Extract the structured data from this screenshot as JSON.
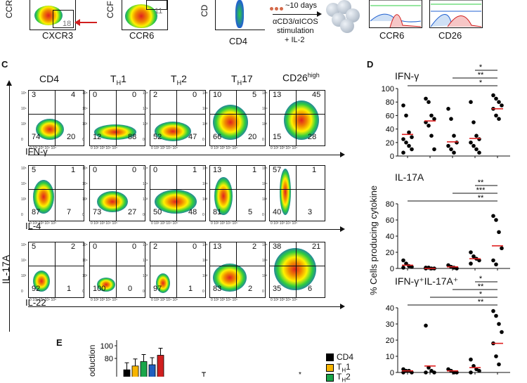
{
  "top": {
    "axis_cxcr3": "CXCR3",
    "axis_ccr6": "CCR6",
    "axis_cd4": "CD4",
    "gate_18": "18",
    "gate_11": "11",
    "culture": "~10 days",
    "stim1": "αCD3/αICOS",
    "stim2": "stimulation",
    "stim3": "+ IL-2",
    "hist_ccr6": "CCR6",
    "hist_cd26": "CD26"
  },
  "panelC": {
    "letter": "C",
    "y_axis_label": "IL-17A",
    "columns": [
      "CD4",
      "TH1",
      "TH2",
      "TH17",
      "CD26high"
    ],
    "row_labels": [
      "IFN-γ",
      "IL-4",
      "IL-22"
    ],
    "tick_x": "0 10² 10³ 10⁴ 10⁵",
    "tick_y": [
      "10⁵",
      "10⁴",
      "10³",
      "0"
    ],
    "rows": [
      [
        [
          "3",
          "4",
          "74",
          "20"
        ],
        [
          "0",
          "0",
          "12",
          "88"
        ],
        [
          "2",
          "0",
          "52",
          "47"
        ],
        [
          "10",
          "5",
          "66",
          "20"
        ],
        [
          "13",
          "45",
          "15",
          "28"
        ]
      ],
      [
        [
          "5",
          "1",
          "87",
          "7"
        ],
        [
          "0",
          "0",
          "73",
          "27"
        ],
        [
          "0",
          "1",
          "50",
          "48"
        ],
        [
          "13",
          "1",
          "81",
          "5"
        ],
        [
          "57",
          "1",
          "40",
          "3"
        ]
      ],
      [
        [
          "5",
          "2",
          "92",
          "1"
        ],
        [
          "0",
          "0",
          "100",
          "0"
        ],
        [
          "2",
          "0",
          "97",
          "1"
        ],
        [
          "13",
          "2",
          "83",
          "2"
        ],
        [
          "38",
          "21",
          "35",
          "6"
        ]
      ]
    ]
  },
  "panelD": {
    "letter": "D",
    "y_label": "% Cells producing cytokine",
    "sub1": "IFN-γ",
    "sub2": "IL-17A",
    "sub3": "IFN-γ⁺IL-17A⁺",
    "yt1": [
      "100",
      "80",
      "60",
      "40",
      "20",
      "0"
    ],
    "yt2": [
      "80",
      "60",
      "40",
      "20",
      "0"
    ],
    "yt3": [
      "40",
      "30",
      "20",
      "10",
      "0"
    ],
    "sig1": [
      "*",
      "**",
      "*"
    ],
    "sig2": [
      "**",
      "***",
      "**"
    ],
    "sig3": [
      "*",
      "**",
      "*",
      "**"
    ]
  },
  "panelE": {
    "letter": "E",
    "y_label": "oduction",
    "yticks": [
      "100",
      "80"
    ],
    "legend": [
      "CD4",
      "TH1",
      "TH2"
    ],
    "colors": {
      "CD4": "#000000",
      "TH1": "#f7b500",
      "TH2": "#1aa64a",
      "TH17": "#1f5fbf",
      "CD26high": "#d11f1f"
    }
  },
  "chart_data": [
    {
      "type": "scatter",
      "title": "IFN-γ",
      "ylabel": "% Cells producing cytokine",
      "categories": [
        "CD4",
        "TH1",
        "TH2",
        "TH17",
        "CD26high"
      ],
      "ylim": [
        0,
        100
      ],
      "series": [
        {
          "values": [
            [
              75,
              60,
              35,
              28,
              25,
              20,
              15,
              10,
              5
            ],
            [
              85,
              80,
              60,
              55,
              50,
              45,
              30,
              10
            ],
            [
              70,
              55,
              30,
              20,
              15,
              10,
              5
            ],
            [
              80,
              50,
              30,
              25,
              20,
              15,
              10,
              5
            ],
            [
              90,
              85,
              80,
              75,
              70,
              60,
              55
            ]
          ]
        }
      ],
      "medians": [
        32,
        52,
        21,
        26,
        70
      ]
    },
    {
      "type": "scatter",
      "title": "IL-17A",
      "categories": [
        "CD4",
        "TH1",
        "TH2",
        "TH17",
        "CD26high"
      ],
      "ylim": [
        0,
        80
      ],
      "series": [
        {
          "values": [
            [
              10,
              6,
              3,
              2,
              1
            ],
            [
              1,
              1,
              0,
              0,
              0
            ],
            [
              4,
              2,
              1,
              0
            ],
            [
              20,
              15,
              12,
              10,
              6
            ],
            [
              65,
              60,
              45,
              25,
              10,
              5
            ]
          ]
        }
      ],
      "medians": [
        4,
        0,
        2,
        12,
        28
      ]
    },
    {
      "type": "scatter",
      "title": "IFN-γ⁺IL-17A⁺",
      "categories": [
        "CD4",
        "TH1",
        "TH2",
        "TH17",
        "CD26high"
      ],
      "ylim": [
        0,
        40
      ],
      "series": [
        {
          "values": [
            [
              2,
              1,
              1,
              0,
              0
            ],
            [
              29,
              3,
              1,
              0,
              0
            ],
            [
              2,
              1,
              0,
              0
            ],
            [
              8,
              4,
              2,
              1,
              0
            ],
            [
              38,
              35,
              30,
              25,
              18,
              10,
              5
            ]
          ]
        }
      ],
      "medians": [
        1,
        4,
        1,
        3,
        18
      ]
    },
    {
      "type": "bar",
      "title": "",
      "ylabel": "oduction",
      "categories": [
        "CD4",
        "TH1",
        "TH2",
        "TH17",
        "CD26high"
      ],
      "ylim": [
        0,
        100
      ],
      "values": [
        62,
        68,
        75,
        70,
        85
      ]
    }
  ]
}
